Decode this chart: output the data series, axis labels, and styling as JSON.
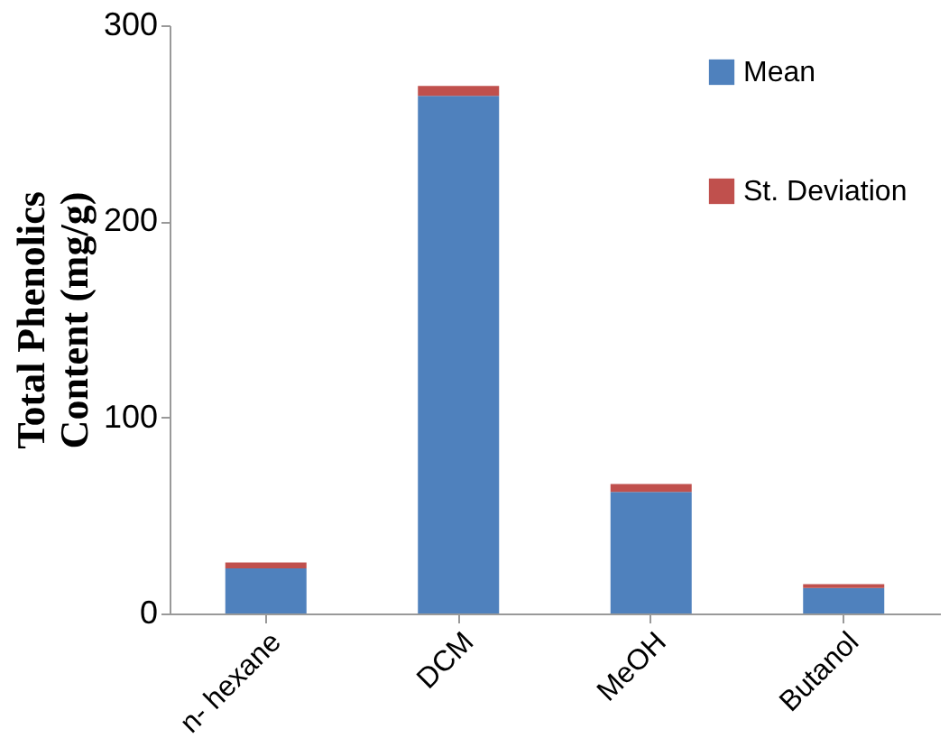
{
  "chart_data": {
    "type": "bar",
    "stacked": true,
    "categories": [
      "n- hexane",
      "DCM",
      "MeOH",
      "Butanol"
    ],
    "series": [
      {
        "name": "Mean",
        "color": "#4f81bd",
        "values": [
          23,
          264,
          62,
          13
        ]
      },
      {
        "name": "St. Deviation",
        "color": "#c0504d",
        "values": [
          3,
          5,
          4,
          2
        ]
      }
    ],
    "ylabel": "Total Phenolics\nContent (mg/g)",
    "ylim": [
      0,
      300
    ],
    "yticks": [
      0,
      100,
      200,
      300
    ],
    "grid": false,
    "legend": "top right"
  }
}
